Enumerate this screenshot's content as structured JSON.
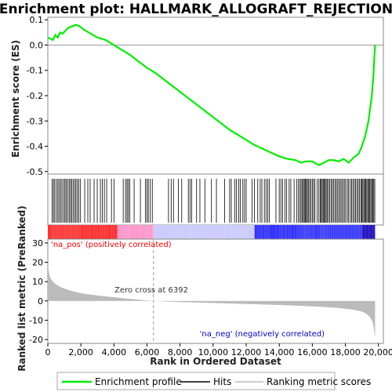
{
  "chart_data": {
    "type": "line",
    "title": "Enrichment plot: HALLMARK_ALLOGRAFT_REJECTION",
    "xlabel": "Rank in Ordered Dataset",
    "es_panel": {
      "ylabel": "Enrichment score (ES)",
      "ylim": [
        -0.51,
        0.11
      ],
      "yticks": [
        0.1,
        0.0,
        -0.1,
        -0.2,
        -0.3,
        -0.4,
        -0.5
      ],
      "ytick_labels": [
        "0.1",
        "0.0",
        "-0.1",
        "-0.2",
        "-0.3",
        "-0.4",
        "-0.5"
      ],
      "grid": false,
      "curve_color": "#00ee00",
      "series": [
        {
          "name": "Enrichment profile",
          "x": [
            0,
            300,
            450,
            600,
            750,
            900,
            1100,
            1300,
            1500,
            1700,
            1900,
            2200,
            2600,
            3000,
            3500,
            4000,
            4500,
            5000,
            5500,
            6000,
            6500,
            7000,
            7500,
            8000,
            8500,
            9000,
            9500,
            10000,
            10500,
            11000,
            11500,
            12000,
            12500,
            13000,
            13500,
            14000,
            14500,
            15000,
            15300,
            15600,
            16000,
            16400,
            16700,
            17000,
            17300,
            17600,
            17900,
            18200,
            18500,
            18800,
            19000,
            19200,
            19400,
            19500,
            19600,
            19700,
            19750,
            19800
          ],
          "y": [
            0.03,
            0.02,
            0.04,
            0.03,
            0.05,
            0.045,
            0.06,
            0.07,
            0.075,
            0.08,
            0.075,
            0.06,
            0.045,
            0.03,
            0.02,
            0.0,
            -0.02,
            -0.04,
            -0.065,
            -0.09,
            -0.11,
            -0.135,
            -0.16,
            -0.185,
            -0.21,
            -0.235,
            -0.26,
            -0.285,
            -0.31,
            -0.335,
            -0.355,
            -0.375,
            -0.395,
            -0.41,
            -0.425,
            -0.44,
            -0.45,
            -0.455,
            -0.465,
            -0.46,
            -0.46,
            -0.475,
            -0.465,
            -0.455,
            -0.455,
            -0.46,
            -0.45,
            -0.465,
            -0.445,
            -0.43,
            -0.4,
            -0.36,
            -0.3,
            -0.25,
            -0.2,
            -0.12,
            -0.05,
            0.0
          ]
        }
      ]
    },
    "hits_panel": {
      "name": "Hits",
      "hit_color": "#000000",
      "hits": [
        260,
        340,
        420,
        520,
        610,
        690,
        780,
        860,
        960,
        1040,
        1120,
        1200,
        1290,
        1370,
        1450,
        1530,
        1620,
        1700,
        1790,
        1880,
        1980,
        2230,
        2420,
        2560,
        2800,
        2990,
        3180,
        3300,
        3420,
        3560,
        3850,
        4000,
        4560,
        4700,
        4790,
        4870,
        4960,
        5220,
        5600,
        5900,
        6000,
        6080,
        6200,
        6320,
        7300,
        7460,
        7600,
        7900,
        8100,
        8500,
        8600,
        8700,
        9000,
        9200,
        9500,
        9900,
        10200,
        10700,
        11000,
        11100,
        11300,
        11400,
        11550,
        11650,
        11800,
        11900,
        12000,
        12350,
        12500,
        12700,
        12850,
        12950,
        13100,
        13200,
        13300,
        13400,
        13800,
        14000,
        14100,
        14200,
        14350,
        14450,
        14600,
        14700,
        14900,
        15050,
        15150,
        15250,
        15320,
        15400,
        15460,
        15520,
        15580,
        15640,
        15700,
        15760,
        15840,
        15920,
        16000,
        16080,
        16160,
        16300,
        16400,
        16480,
        16540,
        16600,
        16660,
        16720,
        16780,
        16840,
        16900,
        16980,
        17060,
        17140,
        17220,
        17300,
        17380,
        17460,
        17540,
        17620,
        17700,
        17780,
        17860,
        17940,
        18020,
        18120,
        18200,
        18300,
        18380,
        18460,
        18540,
        18620,
        18700,
        18780,
        18860,
        18940,
        19000,
        19060,
        19120,
        19180,
        19240,
        19300,
        19360,
        19420,
        19480,
        19540,
        19600,
        19660,
        19720,
        19780
      ]
    },
    "rank_bar": {
      "colors": [
        "#ff3333",
        "#ff99cc",
        "#ccccff",
        "#3333ff",
        "#1100bb"
      ],
      "breaks": [
        0,
        4200,
        6392,
        12500,
        19000,
        19800
      ]
    },
    "metric_panel": {
      "ylabel": "Ranked list metric (PreRanked)",
      "ylim": [
        -22,
        32
      ],
      "yticks": [
        30,
        20,
        10,
        0,
        -10,
        -20
      ],
      "ytick_labels": [
        "30",
        "20",
        "10",
        "0",
        "-10",
        "-20"
      ],
      "fill_color": "#bbbbbb",
      "rank": [
        0,
        60,
        150,
        300,
        500,
        800,
        1200,
        1700,
        2300,
        3000,
        4000,
        5000,
        6392,
        8000,
        10000,
        12000,
        14000,
        16000,
        17500,
        18500,
        19000,
        19300,
        19500,
        19650,
        19720,
        19760,
        19800
      ],
      "metric": [
        19,
        15,
        12,
        10,
        8.5,
        7,
        5.8,
        4.6,
        3.6,
        2.8,
        1.9,
        1.0,
        0,
        -0.6,
        -1.1,
        -1.6,
        -2.1,
        -2.8,
        -3.6,
        -4.6,
        -5.5,
        -6.8,
        -8.5,
        -11,
        -14,
        -17,
        -19
      ],
      "zero_cross_label": "Zero cross at 6392",
      "zero_cross": 6392,
      "pos_label": "'na_pos' (positively correlated)",
      "neg_label": "'na_neg' (negatively correlated)",
      "pos_color": "#ff0000",
      "neg_color": "#0000cc"
    },
    "xlim": [
      0,
      20300
    ],
    "xticks": [
      0,
      2000,
      4000,
      6000,
      8000,
      10000,
      12000,
      14000,
      16000,
      18000,
      20000
    ],
    "xtick_labels": [
      "0",
      "2,000",
      "4,000",
      "6,000",
      "8,000",
      "10,000",
      "12,000",
      "14,000",
      "16,000",
      "18,000",
      "20,000"
    ],
    "legend": {
      "placement": "bottom",
      "items": [
        {
          "label": "Enrichment profile",
          "color": "#00ee00"
        },
        {
          "label": "Hits",
          "color": "#000000"
        },
        {
          "label": "Ranking metric scores",
          "color": "#bbbbbb"
        }
      ]
    }
  }
}
